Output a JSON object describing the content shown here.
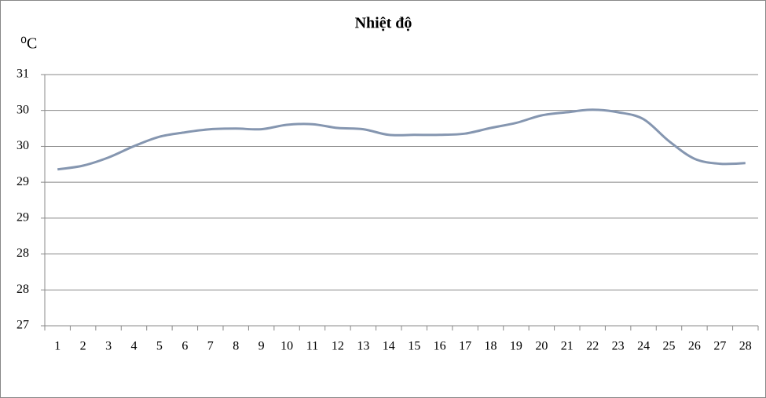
{
  "chart_data": {
    "type": "line",
    "title": "Nhiệt độ",
    "y_label": "⁰C",
    "categories": [
      "1",
      "2",
      "3",
      "4",
      "5",
      "6",
      "7",
      "8",
      "9",
      "10",
      "11",
      "12",
      "13",
      "14",
      "15",
      "16",
      "17",
      "18",
      "19",
      "20",
      "21",
      "22",
      "23",
      "24",
      "25",
      "26",
      "27",
      "28"
    ],
    "series": [
      {
        "name": "Nhiệt độ",
        "color": "#8596b0",
        "values": [
          29.49,
          29.55,
          29.68,
          29.86,
          30.01,
          30.08,
          30.13,
          30.14,
          30.13,
          30.2,
          30.21,
          30.15,
          30.13,
          30.04,
          30.04,
          30.04,
          30.06,
          30.15,
          30.23,
          30.35,
          30.4,
          30.44,
          30.4,
          30.29,
          29.94,
          29.66,
          29.58,
          29.59
        ]
      }
    ],
    "ylim": [
      27,
      31
    ],
    "yticks": [
      27,
      {
        "value": 27.571,
        "label": "28"
      },
      {
        "value": 28.143,
        "label": "28"
      },
      {
        "value": 28.714,
        "label": "29"
      },
      {
        "value": 29.286,
        "label": "29"
      },
      {
        "value": 29.857,
        "label": "30"
      },
      {
        "value": 30.429,
        "label": "30"
      },
      31
    ],
    "grid": true
  }
}
